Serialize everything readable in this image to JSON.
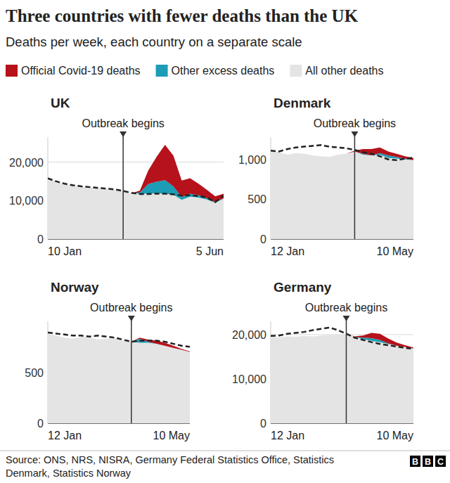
{
  "title": "Three countries with fewer deaths than the UK",
  "subtitle": "Deaths per week, each country on a separate scale",
  "source": [
    "Source: ONS, NRS, NISRA, Germany Federal Statistics Office, Statistics",
    "Denmark, Statistics Norway"
  ],
  "brand": "BBC",
  "chart_data": [
    {
      "type": "area",
      "title": "UK",
      "stacked": true,
      "grid": true,
      "legend": "top",
      "x": [
        "10 Jan",
        null,
        null,
        null,
        null,
        null,
        null,
        null,
        null,
        null,
        null,
        null,
        null,
        null,
        null,
        null,
        null,
        null,
        null,
        null,
        null,
        "5 Jun"
      ],
      "ylim": [
        0,
        26500
      ],
      "yticks": [
        0,
        {
          "value": 10000,
          "label": "10,000"
        },
        {
          "value": 20000,
          "label": "20,000"
        }
      ],
      "annotations": [
        {
          "label": "Outbreak begins",
          "x": 9
        }
      ],
      "series": [
        {
          "name": "Official Covid-19 deaths",
          "color": "#b5121b",
          "values": [
            0,
            0,
            0,
            0,
            0,
            0,
            0,
            0,
            0,
            0,
            0,
            500,
            3500,
            6500,
            9200,
            8000,
            4300,
            4000,
            3000,
            2200,
            1500,
            1200
          ]
        },
        {
          "name": "Other excess deaths",
          "color": "#1c9cb5",
          "values": [
            0,
            0,
            0,
            0,
            0,
            0,
            0,
            0,
            0,
            0,
            0,
            300,
            2500,
            3000,
            3500,
            2200,
            700,
            800,
            600,
            300,
            200,
            100
          ]
        },
        {
          "name": "All other deaths",
          "color": "#e4e4e4",
          "values": [
            15800,
            15000,
            14300,
            13900,
            13600,
            13400,
            13200,
            13000,
            12800,
            12400,
            11900,
            11800,
            11800,
            11900,
            11800,
            11500,
            10200,
            11000,
            10800,
            10300,
            9400,
            10500
          ]
        },
        {
          "type": "line",
          "line_style": "dashed",
          "color": "#222222",
          "values": [
            15800,
            15000,
            14400,
            14000,
            13700,
            13500,
            13300,
            13100,
            12900,
            12500,
            12000,
            11700,
            11700,
            11800,
            11800,
            11600,
            11300,
            11400,
            11200,
            10800,
            9600,
            11300
          ]
        }
      ]
    },
    {
      "type": "area",
      "title": "Denmark",
      "stacked": true,
      "grid": true,
      "x": [
        "12 Jan",
        null,
        null,
        null,
        null,
        null,
        null,
        null,
        null,
        null,
        null,
        null,
        null,
        null,
        null,
        null,
        null,
        "10 May"
      ],
      "ylim": [
        0,
        1280
      ],
      "yticks": [
        0,
        500,
        {
          "value": 1000,
          "label": "1,000"
        }
      ],
      "annotations": [
        {
          "label": "Outbreak begins",
          "x": 10
        }
      ],
      "series": [
        {
          "color": "#b5121b",
          "values": [
            0,
            0,
            0,
            0,
            0,
            0,
            0,
            0,
            0,
            0,
            10,
            60,
            80,
            70,
            50,
            40,
            30,
            25
          ]
        },
        {
          "color": "#1c9cb5",
          "values": [
            0,
            0,
            0,
            0,
            0,
            0,
            0,
            0,
            0,
            0,
            0,
            10,
            0,
            20,
            30,
            20,
            10,
            0
          ]
        },
        {
          "color": "#e4e4e4",
          "values": [
            1110,
            1090,
            1060,
            1080,
            1070,
            1050,
            1040,
            1030,
            1060,
            1070,
            1100,
            1060,
            1050,
            1060,
            1020,
            1010,
            1000,
            990
          ]
        },
        {
          "type": "line",
          "line_style": "dashed",
          "color": "#222222",
          "values": [
            1110,
            1100,
            1130,
            1150,
            1160,
            1170,
            1180,
            1160,
            1150,
            1140,
            1120,
            1090,
            1070,
            1040,
            1000,
            990,
            1010,
            1020
          ]
        }
      ]
    },
    {
      "type": "area",
      "title": "Norway",
      "stacked": true,
      "grid": true,
      "x": [
        "12 Jan",
        null,
        null,
        null,
        null,
        null,
        null,
        null,
        null,
        null,
        null,
        null,
        null,
        null,
        null,
        null,
        null,
        "10 May"
      ],
      "ylim": [
        0,
        1000
      ],
      "yticks": [
        0,
        500
      ],
      "annotations": [
        {
          "label": "Outbreak begins",
          "x": 10
        }
      ],
      "series": [
        {
          "color": "#b5121b",
          "values": [
            0,
            0,
            0,
            0,
            0,
            0,
            0,
            0,
            0,
            0,
            0,
            10,
            20,
            30,
            30,
            20,
            10,
            5
          ]
        },
        {
          "color": "#1c9cb5",
          "values": [
            0,
            0,
            0,
            0,
            0,
            0,
            0,
            0,
            0,
            0,
            0,
            40,
            10,
            0,
            0,
            0,
            0,
            0
          ]
        },
        {
          "color": "#e4e4e4",
          "values": [
            880,
            860,
            840,
            830,
            850,
            840,
            820,
            830,
            840,
            810,
            800,
            790,
            790,
            780,
            760,
            740,
            720,
            700
          ]
        },
        {
          "type": "line",
          "line_style": "dashed",
          "color": "#222222",
          "values": [
            890,
            880,
            870,
            860,
            860,
            850,
            860,
            850,
            840,
            820,
            800,
            810,
            810,
            810,
            800,
            780,
            760,
            750
          ]
        }
      ]
    },
    {
      "type": "area",
      "title": "Germany",
      "stacked": true,
      "grid": true,
      "x": [
        "12 Jan",
        null,
        null,
        null,
        null,
        null,
        null,
        null,
        null,
        null,
        null,
        null,
        null,
        null,
        null,
        null,
        null,
        "10 May"
      ],
      "ylim": [
        0,
        23000
      ],
      "yticks": [
        0,
        {
          "value": 10000,
          "label": "10,000"
        },
        {
          "value": 20000,
          "label": "20,000"
        }
      ],
      "annotations": [
        {
          "label": "Outbreak begins",
          "x": 9
        }
      ],
      "series": [
        {
          "color": "#b5121b",
          "values": [
            0,
            0,
            0,
            0,
            0,
            0,
            0,
            0,
            0,
            0,
            100,
            500,
            1200,
            1400,
            1100,
            700,
            400,
            200
          ]
        },
        {
          "color": "#1c9cb5",
          "values": [
            0,
            0,
            0,
            0,
            0,
            0,
            0,
            0,
            0,
            0,
            0,
            300,
            600,
            500,
            100,
            0,
            0,
            0
          ]
        },
        {
          "color": "#e4e4e4",
          "values": [
            19500,
            19400,
            19600,
            19500,
            19700,
            19600,
            19800,
            19900,
            20000,
            20100,
            19500,
            19000,
            18600,
            18300,
            17900,
            17500,
            17200,
            16900
          ]
        },
        {
          "type": "line",
          "line_style": "dashed",
          "color": "#222222",
          "values": [
            19700,
            19800,
            20200,
            20400,
            20600,
            21000,
            21300,
            21600,
            21000,
            20200,
            19300,
            18800,
            18300,
            17900,
            17600,
            17300,
            17000,
            16800
          ]
        }
      ]
    }
  ]
}
